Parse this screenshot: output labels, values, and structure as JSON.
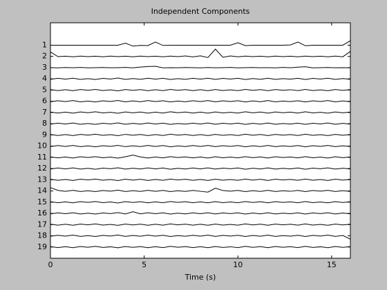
{
  "chart_data": {
    "type": "line",
    "title": "Independent Components",
    "xlabel": "Time (s)",
    "color": "#000000",
    "xlim": [
      0,
      16
    ],
    "xticks": [
      0,
      5,
      10,
      15
    ],
    "ylim": [
      -1,
      20
    ],
    "reverse_y": true,
    "yticks": [
      1,
      2,
      3,
      4,
      5,
      6,
      7,
      8,
      9,
      10,
      11,
      12,
      13,
      14,
      15,
      16,
      17,
      18,
      19
    ],
    "grid": false,
    "x": [
      0,
      0.4,
      0.8,
      1.2,
      1.6,
      2.0,
      2.4,
      2.8,
      3.2,
      3.6,
      4.0,
      4.4,
      4.8,
      5.2,
      5.6,
      6.0,
      6.4,
      6.8,
      7.2,
      7.6,
      8.0,
      8.4,
      8.8,
      9.2,
      9.6,
      10.0,
      10.4,
      10.8,
      11.2,
      11.6,
      12.0,
      12.4,
      12.8,
      13.2,
      13.6,
      14.0,
      14.4,
      14.8,
      15.2,
      15.6,
      16.0
    ],
    "series": [
      {
        "values": [
          1,
          1,
          1,
          1,
          1,
          1,
          1,
          1,
          1,
          1,
          0.82,
          1.08,
          1.02,
          1.03,
          0.72,
          1.02,
          1,
          1,
          1,
          1,
          1,
          1,
          1,
          1,
          1,
          0.78,
          1.04,
          1,
          1,
          1,
          1,
          1,
          0.98,
          0.72,
          1.05,
          1,
          1,
          1,
          1,
          1,
          0.6
        ]
      },
      {
        "values": [
          1.6,
          2.02,
          1.98,
          2.03,
          1.97,
          2.02,
          1.98,
          2.03,
          1.97,
          2.02,
          1.98,
          2.03,
          1.97,
          2.02,
          1.98,
          2.03,
          1.97,
          2.02,
          1.96,
          2.04,
          1.95,
          2.1,
          1.35,
          2.08,
          1.96,
          2.03,
          1.97,
          2.02,
          1.98,
          2.03,
          1.97,
          2.02,
          1.98,
          2.03,
          1.97,
          2.02,
          1.98,
          2.03,
          1.97,
          2.03,
          1.55
        ]
      },
      {
        "values": [
          3,
          3.02,
          2.99,
          3.01,
          2.98,
          3.02,
          3,
          2.99,
          3.01,
          3,
          2.98,
          3.02,
          2.95,
          2.9,
          2.88,
          3.02,
          3,
          3.01,
          2.99,
          3,
          3.02,
          2.99,
          3.01,
          3,
          2.98,
          3.02,
          3,
          2.99,
          3.01,
          3,
          3.02,
          2.98,
          3.01,
          2.96,
          2.92,
          3.02,
          3,
          2.99,
          3.01,
          3,
          3.02
        ]
      },
      {
        "values": [
          4.04,
          3.95,
          4.03,
          3.94,
          4.05,
          3.98,
          4.06,
          3.96,
          4.02,
          3.93,
          4.05,
          3.97,
          4.04,
          3.94,
          4.03,
          3.95,
          4.06,
          3.98,
          4.04,
          3.95,
          4.03,
          3.94,
          4.05,
          3.96,
          4.02,
          3.95,
          4.06,
          3.97,
          4.04,
          3.94,
          4.05,
          3.98,
          4.03,
          3.95,
          4.06,
          3.96,
          4.02,
          3.94,
          4.05,
          3.97,
          4.04
        ]
      },
      {
        "values": [
          4.96,
          5.05,
          4.97,
          5.06,
          4.95,
          5.02,
          4.94,
          5.04,
          4.98,
          5.07,
          4.95,
          5.03,
          4.96,
          5.06,
          4.97,
          5.05,
          4.94,
          5.02,
          4.96,
          5.05,
          4.97,
          5.06,
          4.95,
          5.04,
          4.98,
          5.05,
          4.94,
          5.03,
          4.96,
          5.06,
          4.95,
          5.02,
          4.97,
          5.05,
          4.94,
          5.04,
          4.98,
          5.06,
          4.95,
          5.03,
          4.96
        ]
      },
      {
        "values": [
          6.04,
          5.95,
          6.03,
          5.94,
          6.05,
          5.98,
          6.06,
          5.96,
          6.02,
          5.93,
          6.05,
          5.97,
          6.04,
          5.94,
          6.03,
          5.95,
          6.06,
          5.98,
          6.04,
          5.95,
          6.03,
          5.94,
          6.05,
          5.96,
          6.02,
          5.95,
          6.06,
          5.97,
          6.04,
          5.94,
          6.05,
          5.98,
          6.03,
          5.95,
          6.06,
          5.96,
          6.02,
          5.94,
          6.05,
          5.97,
          6.04
        ]
      },
      {
        "values": [
          6.96,
          7.05,
          6.97,
          7.06,
          6.95,
          7.02,
          6.94,
          7.04,
          6.98,
          7.07,
          6.95,
          7.03,
          6.96,
          7.06,
          6.97,
          7.05,
          6.94,
          7.02,
          6.96,
          7.05,
          6.97,
          7.06,
          6.95,
          7.04,
          6.98,
          7.05,
          6.94,
          7.03,
          6.96,
          7.06,
          6.95,
          7.02,
          6.97,
          7.05,
          6.94,
          7.04,
          6.98,
          7.06,
          6.95,
          7.03,
          6.96
        ]
      },
      {
        "values": [
          8.04,
          7.95,
          8.03,
          7.94,
          8.05,
          7.98,
          8.06,
          7.96,
          8.02,
          7.93,
          8.05,
          7.97,
          8.04,
          7.94,
          8.03,
          7.95,
          8.06,
          7.98,
          8.04,
          7.95,
          8.03,
          7.94,
          8.05,
          7.96,
          8.02,
          7.95,
          8.06,
          7.97,
          8.04,
          7.94,
          8.05,
          7.98,
          8.03,
          7.95,
          8.06,
          7.96,
          8.02,
          7.94,
          8.05,
          7.97,
          8.04
        ]
      },
      {
        "values": [
          8.96,
          9.05,
          8.97,
          9.06,
          8.95,
          9.02,
          8.94,
          9.04,
          8.98,
          9.07,
          8.95,
          9.03,
          8.96,
          9.06,
          8.97,
          9.05,
          8.94,
          9.02,
          8.96,
          9.05,
          8.97,
          9.06,
          8.95,
          9.04,
          8.98,
          9.05,
          8.94,
          9.03,
          8.96,
          9.06,
          8.95,
          9.02,
          8.97,
          9.05,
          8.94,
          9.04,
          8.98,
          9.06,
          8.95,
          9.03,
          8.96
        ]
      },
      {
        "values": [
          10.04,
          9.95,
          10.03,
          9.94,
          10.05,
          9.98,
          10.06,
          9.96,
          10.02,
          9.93,
          10.05,
          9.97,
          10.04,
          9.94,
          10.03,
          9.95,
          10.06,
          9.98,
          10.04,
          9.95,
          10.03,
          9.94,
          10.05,
          9.96,
          10.02,
          9.95,
          10.06,
          9.97,
          10.04,
          9.94,
          10.05,
          9.98,
          10.03,
          9.95,
          10.06,
          9.96,
          10.02,
          9.94,
          10.05,
          9.97,
          10.04
        ]
      },
      {
        "values": [
          10.96,
          11.05,
          10.97,
          11.06,
          10.95,
          11.02,
          10.94,
          11.04,
          10.98,
          11.07,
          10.95,
          10.8,
          10.96,
          11.06,
          10.97,
          11.05,
          10.94,
          11.02,
          10.96,
          11.05,
          10.97,
          11.06,
          10.95,
          11.04,
          10.98,
          11.05,
          10.94,
          11.03,
          10.96,
          11.06,
          10.95,
          11.02,
          10.97,
          11.05,
          10.94,
          11.04,
          10.98,
          11.06,
          10.95,
          11.03,
          10.96
        ]
      },
      {
        "values": [
          12.04,
          11.95,
          12.03,
          11.94,
          12.05,
          11.98,
          12.06,
          11.96,
          12.02,
          11.93,
          12.05,
          11.97,
          12.04,
          11.94,
          12.03,
          11.95,
          12.06,
          11.98,
          12.04,
          11.95,
          12.03,
          11.94,
          12.05,
          11.96,
          12.02,
          11.95,
          12.06,
          11.97,
          12.04,
          11.94,
          12.05,
          11.98,
          12.03,
          11.95,
          12.06,
          11.96,
          12.02,
          11.94,
          12.05,
          11.97,
          12.04
        ]
      },
      {
        "values": [
          12.96,
          13.05,
          12.97,
          13.06,
          12.95,
          13.02,
          12.94,
          13.04,
          12.98,
          13.07,
          12.95,
          13.03,
          12.96,
          13.06,
          12.97,
          13.05,
          12.94,
          13.02,
          12.96,
          13.05,
          12.97,
          13.06,
          12.95,
          13.04,
          12.98,
          13.05,
          12.94,
          13.03,
          12.96,
          13.06,
          12.95,
          13.02,
          12.97,
          13.05,
          12.94,
          13.04,
          12.98,
          13.06,
          12.95,
          13.03,
          12.96
        ]
      },
      {
        "values": [
          13.7,
          13.95,
          14.03,
          13.94,
          14.05,
          13.98,
          14.06,
          13.96,
          14.02,
          13.93,
          14.05,
          13.97,
          14.04,
          13.94,
          14.03,
          13.95,
          14.06,
          13.98,
          14.04,
          13.95,
          14.03,
          14.1,
          13.75,
          13.96,
          14.02,
          13.95,
          14.06,
          13.97,
          14.04,
          13.94,
          14.05,
          13.98,
          14.03,
          13.95,
          14.06,
          13.96,
          14.02,
          13.94,
          14.05,
          13.97,
          14.04
        ]
      },
      {
        "values": [
          14.96,
          15.05,
          14.97,
          15.06,
          14.95,
          15.02,
          14.94,
          15.04,
          14.98,
          15.07,
          14.95,
          15.03,
          14.96,
          15.06,
          14.97,
          15.05,
          14.94,
          15.02,
          14.96,
          15.05,
          14.97,
          15.06,
          14.95,
          15.04,
          14.98,
          15.05,
          14.94,
          15.03,
          14.96,
          15.06,
          14.95,
          15.02,
          14.97,
          15.05,
          14.94,
          15.04,
          14.98,
          15.06,
          14.95,
          15.03,
          14.96
        ]
      },
      {
        "values": [
          16.04,
          15.95,
          16.03,
          15.94,
          16.05,
          15.98,
          16.06,
          15.96,
          16.02,
          15.93,
          16.05,
          15.85,
          16.04,
          15.94,
          16.03,
          15.95,
          16.06,
          15.98,
          16.04,
          15.95,
          16.03,
          15.94,
          16.05,
          15.96,
          16.02,
          15.95,
          16.06,
          15.97,
          16.04,
          15.94,
          16.05,
          15.98,
          16.03,
          15.95,
          16.06,
          15.96,
          16.02,
          15.94,
          16.05,
          15.97,
          16.04
        ]
      },
      {
        "values": [
          16.96,
          17.05,
          16.97,
          17.06,
          16.95,
          17.02,
          16.94,
          17.04,
          16.98,
          17.07,
          16.95,
          17.03,
          16.96,
          17.06,
          16.97,
          17.05,
          16.94,
          17.02,
          16.96,
          17.05,
          16.97,
          17.06,
          16.95,
          17.04,
          16.98,
          17.05,
          16.94,
          17.03,
          16.96,
          17.06,
          16.95,
          17.02,
          16.97,
          17.05,
          16.94,
          17.04,
          16.98,
          17.06,
          16.95,
          17.03,
          16.96
        ]
      },
      {
        "values": [
          18.04,
          17.95,
          18.03,
          17.94,
          18.05,
          17.98,
          18.06,
          17.96,
          18.02,
          17.93,
          18.05,
          17.97,
          18.04,
          17.94,
          18.03,
          17.95,
          18.06,
          17.98,
          18.04,
          17.95,
          18.03,
          17.94,
          18.05,
          17.96,
          18.02,
          17.95,
          18.06,
          17.97,
          18.04,
          17.94,
          18.05,
          17.98,
          18.03,
          17.95,
          18.06,
          17.96,
          18.02,
          17.94,
          18.05,
          17.97,
          18.3
        ]
      },
      {
        "values": [
          18.96,
          19.05,
          18.97,
          19.06,
          18.95,
          19.02,
          18.94,
          19.04,
          18.98,
          19.07,
          18.95,
          19.03,
          18.96,
          19.06,
          18.97,
          19.05,
          18.94,
          19.02,
          18.96,
          19.05,
          18.97,
          19.06,
          18.95,
          19.04,
          18.98,
          19.05,
          18.94,
          19.03,
          18.96,
          19.06,
          18.95,
          19.02,
          18.97,
          19.05,
          18.94,
          19.04,
          18.98,
          19.06,
          18.95,
          19.03,
          18.96
        ]
      }
    ]
  }
}
